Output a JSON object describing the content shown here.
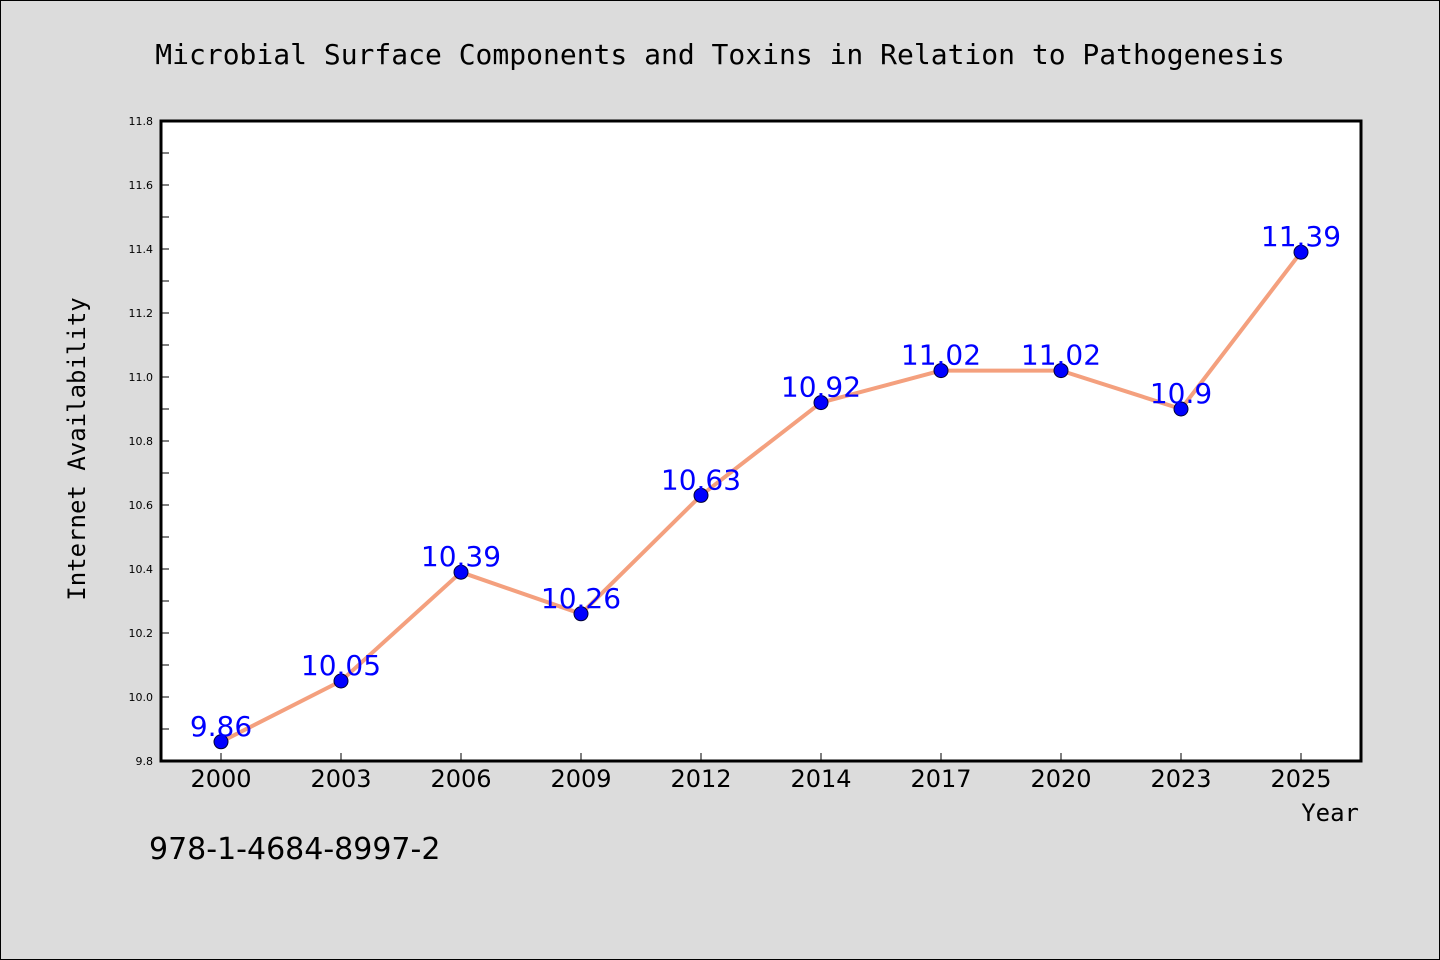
{
  "chart_data": {
    "type": "line",
    "title": "Microbial Surface Components and Toxins in Relation to Pathogenesis",
    "xlabel": "Year",
    "ylabel": "Internet Availability",
    "categories": [
      "2000",
      "2003",
      "2006",
      "2009",
      "2012",
      "2014",
      "2017",
      "2020",
      "2023",
      "2025"
    ],
    "series": [
      {
        "values": [
          9.86,
          10.05,
          10.39,
          10.26,
          10.63,
          10.92,
          11.02,
          11.02,
          10.9,
          11.39
        ],
        "labels": [
          "9.86",
          "10.05",
          "10.39",
          "10.26",
          "10.63",
          "10.92",
          "11.02",
          "11.02",
          "10.9",
          "11.39"
        ]
      }
    ],
    "ylim": [
      9.8,
      11.8
    ],
    "yticks": [
      "9.8",
      "10.0",
      "10.2",
      "10.4",
      "10.6",
      "10.8",
      "11.0",
      "11.2",
      "11.4",
      "11.6",
      "11.8"
    ],
    "grid": false,
    "legend": "none",
    "colors": {
      "line": "#f4a07e",
      "marker": "#0000ff",
      "data_label": "#0000ff",
      "background": "#dcdcdc",
      "plot_area": "#ffffff"
    }
  },
  "footer": {
    "isbn": "978-1-4684-8997-2"
  }
}
